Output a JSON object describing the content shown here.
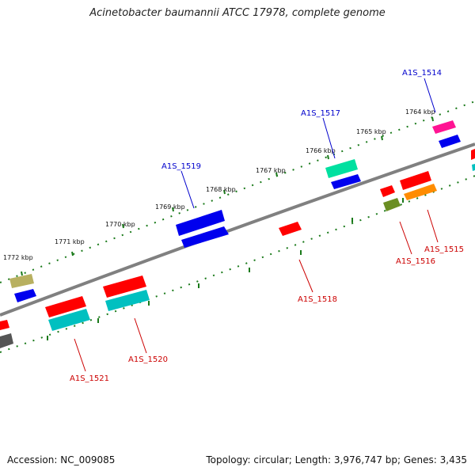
{
  "header": {
    "title": "Acinetobacter baumannii ATCC 17978, complete genome"
  },
  "footer": {
    "accession": "Accession: NC_009085",
    "stats": "Topology: circular; Length: 3,976,747 bp; Genes: 3,435"
  },
  "colors": {
    "backbone": "#808080",
    "forward_label": "#0000cc",
    "reverse_label": "#cc0000",
    "tick": "#1a7a1a"
  },
  "kbp_labels": [
    "1764 kbp",
    "1765 kbp",
    "1766 kbp",
    "1767 kbp",
    "1768 kbp",
    "1769 kbp",
    "1770 kbp",
    "1771 kbp",
    "1772 kbp"
  ],
  "genes": {
    "forward": [
      "A1S_1514",
      "A1S_1517",
      "A1S_1519"
    ],
    "reverse": [
      "A1S_1515",
      "A1S_1516",
      "A1S_1518",
      "A1S_1520",
      "A1S_1521"
    ]
  }
}
